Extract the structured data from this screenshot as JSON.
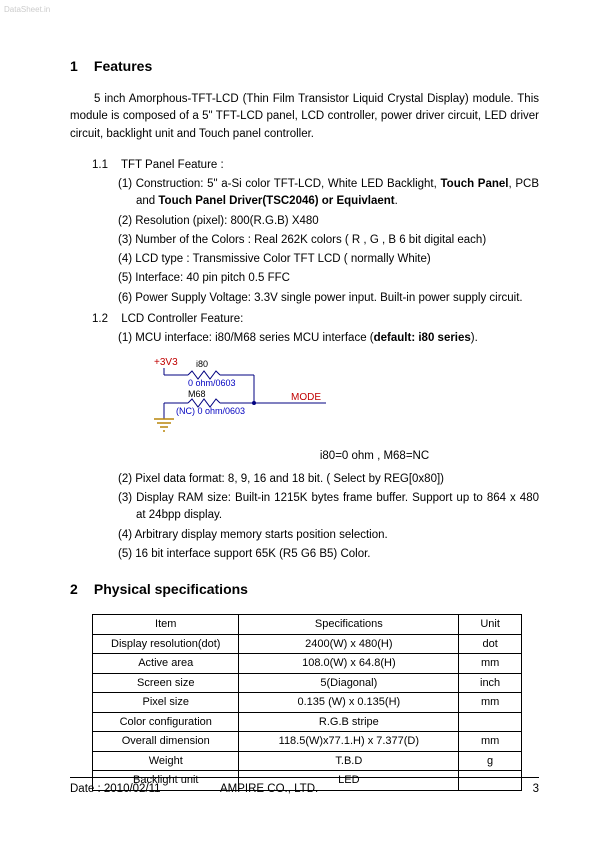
{
  "watermark": "DataSheet.in",
  "section1": {
    "num": "1",
    "title": "Features",
    "intro": "5 inch Amorphous-TFT-LCD (Thin Film Transistor Liquid Crystal Display) module. This module is composed of a 5\" TFT-LCD panel, LCD controller, power driver circuit, LED driver circuit, backlight unit and Touch panel controller.",
    "s11": {
      "num": "1.1",
      "title": "TFT Panel Feature :",
      "i1_a": "(1) Construction: 5\" a-Si color TFT-LCD, White LED Backlight, ",
      "i1_b": "Touch Panel",
      "i1_c": ", PCB and ",
      "i1_d": "Touch Panel Driver(TSC2046) or Equivlaent",
      "i1_e": ".",
      "i2": "(2) Resolution (pixel): 800(R.G.B) X480",
      "i3": "(3) Number of the Colors : Real 262K colors ( R , G , B 6 bit digital each)",
      "i4": "(4) LCD type : Transmissive Color TFT LCD ( normally White)",
      "i5": "(5) Interface: 40 pin pitch 0.5 FFC",
      "i6": "(6) Power Supply Voltage: 3.3V single power input. Built-in power supply circuit."
    },
    "s12": {
      "num": "1.2",
      "title": "LCD Controller Feature:",
      "i1_a": "(1) MCU interface: i80/M68 series MCU interface (",
      "i1_b": "default: i80 series",
      "i1_c": ").",
      "caption": "i80=0 ohm , M68=NC",
      "i2": "(2) Pixel data format: 8, 9, 16 and 18 bit. ( Select by REG[0x80])",
      "i3": "(3) Display RAM size: Built-in 1215K bytes frame buffer. Support up to 864 x 480 at 24bpp display.",
      "i4": "(4) Arbitrary display memory starts position selection.",
      "i5": "(5) 16 bit interface support 65K (R5 G6 B5) Color."
    }
  },
  "section2": {
    "num": "2",
    "title": "Physical specifications",
    "headers": {
      "c1": "Item",
      "c2": "Specifications",
      "c3": "Unit"
    },
    "rows": [
      {
        "c1": "Display resolution(dot)",
        "c2": "2400(W) x 480(H)",
        "c3": "dot"
      },
      {
        "c1": "Active area",
        "c2": "108.0(W) x 64.8(H)",
        "c3": "mm"
      },
      {
        "c1": "Screen size",
        "c2": "5(Diagonal)",
        "c3": "inch"
      },
      {
        "c1": "Pixel size",
        "c2": "0.135 (W) x 0.135(H)",
        "c3": "mm"
      },
      {
        "c1": "Color configuration",
        "c2": "R.G.B stripe",
        "c3": ""
      },
      {
        "c1": "Overall dimension",
        "c2": "118.5(W)x77.1.H) x 7.377(D)",
        "c3": "mm"
      },
      {
        "c1": "Weight",
        "c2": "T.B.D",
        "c3": "g"
      },
      {
        "c1": "Backlight unit",
        "c2": "LED",
        "c3": ""
      }
    ]
  },
  "diagram": {
    "v_label": "+3V3",
    "i80_label": "i80",
    "i80_val": "0 ohm/0603",
    "m68_label": "M68",
    "m68_val": "(NC) 0 ohm/0603",
    "mode_label": "MODE",
    "colors": {
      "red": "#c00000",
      "blue": "#0000c0",
      "wire": "#000080",
      "gold": "#b8860b"
    }
  },
  "footer": {
    "date": "Date : 2010/02/11",
    "company": "AMPIRE CO., LTD.",
    "page": "3"
  }
}
